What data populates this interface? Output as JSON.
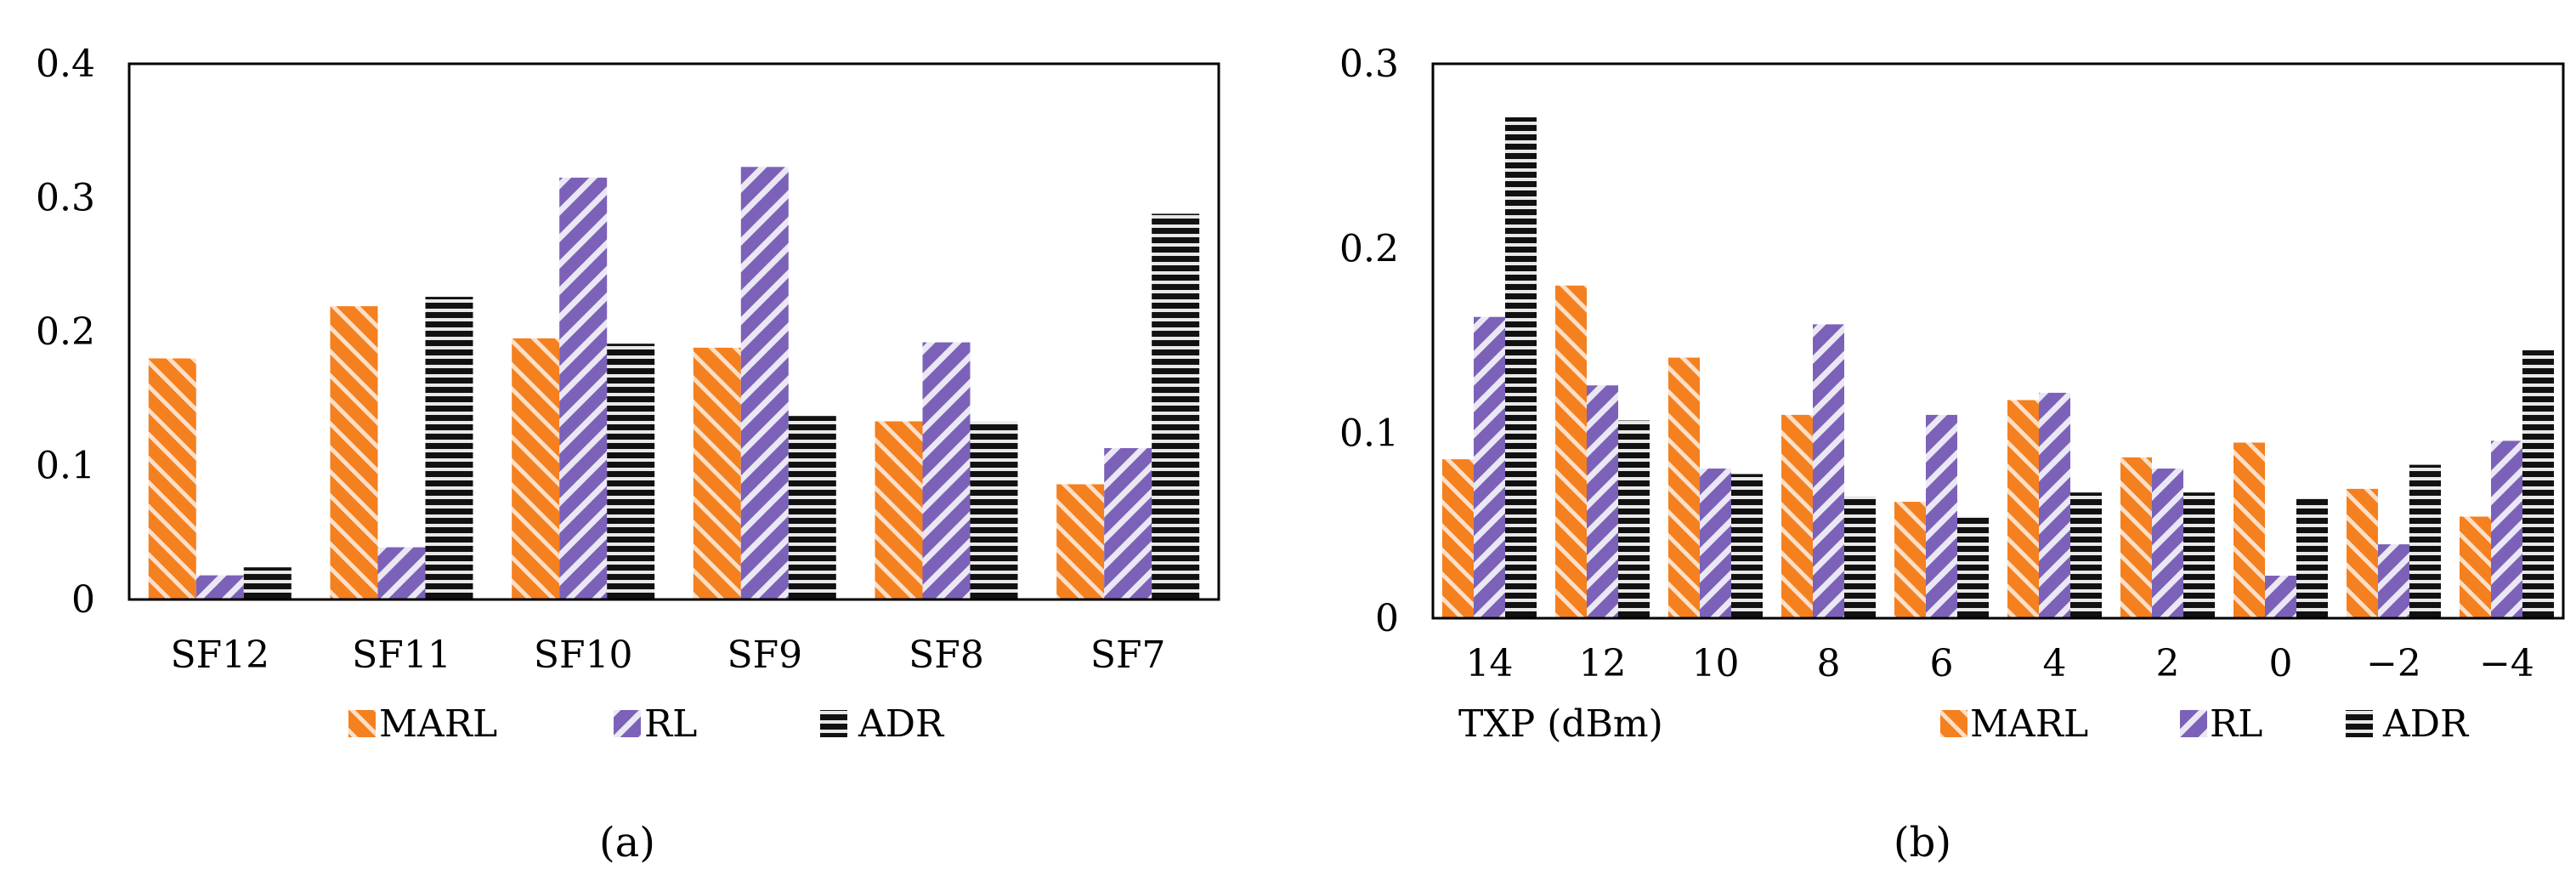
{
  "colors": {
    "MARL": "#f4801f",
    "RL": "#7b62b8",
    "ADR": "#111111",
    "stripe_light": "#ffffff",
    "axis": "#000000"
  },
  "legend": [
    "MARL",
    "RL",
    "ADR"
  ],
  "captions": [
    "(a)",
    "(b)"
  ],
  "chart_data": [
    {
      "type": "bar",
      "panel": "a",
      "title": "",
      "xlabel": "",
      "ylabel": "",
      "categories": [
        "SF12",
        "SF11",
        "SF10",
        "SF9",
        "SF8",
        "SF7"
      ],
      "series": [
        {
          "name": "MARL",
          "values": [
            0.18,
            0.219,
            0.195,
            0.188,
            0.133,
            0.086
          ]
        },
        {
          "name": "RL",
          "values": [
            0.018,
            0.039,
            0.315,
            0.323,
            0.192,
            0.113
          ]
        },
        {
          "name": "ADR",
          "values": [
            0.024,
            0.226,
            0.191,
            0.137,
            0.133,
            0.288
          ]
        }
      ],
      "ylim": [
        0,
        0.4
      ],
      "yticks": [
        "0",
        "0.1",
        "0.2",
        "0.3",
        "0.4"
      ],
      "ytick_values": [
        0,
        0.1,
        0.2,
        0.3,
        0.4
      ],
      "grid": false,
      "legend_position": "bottom"
    },
    {
      "type": "bar",
      "panel": "b",
      "title": "",
      "xlabel": "TXP (dBm)",
      "ylabel": "",
      "categories": [
        "14",
        "12",
        "10",
        "8",
        "6",
        "4",
        "2",
        "0",
        "−2",
        "−4"
      ],
      "series": [
        {
          "name": "MARL",
          "values": [
            0.086,
            0.18,
            0.141,
            0.11,
            0.063,
            0.118,
            0.087,
            0.095,
            0.07,
            0.055
          ]
        },
        {
          "name": "RL",
          "values": [
            0.163,
            0.126,
            0.081,
            0.159,
            0.11,
            0.122,
            0.081,
            0.023,
            0.04,
            0.096
          ]
        },
        {
          "name": "ADR",
          "values": [
            0.271,
            0.107,
            0.078,
            0.066,
            0.055,
            0.068,
            0.068,
            0.065,
            0.083,
            0.145
          ]
        }
      ],
      "ylim": [
        0,
        0.3
      ],
      "yticks": [
        "0",
        "0.1",
        "0.2",
        "0.3"
      ],
      "ytick_values": [
        0,
        0.1,
        0.2,
        0.3
      ],
      "grid": false,
      "legend_position": "bottom-right"
    }
  ]
}
